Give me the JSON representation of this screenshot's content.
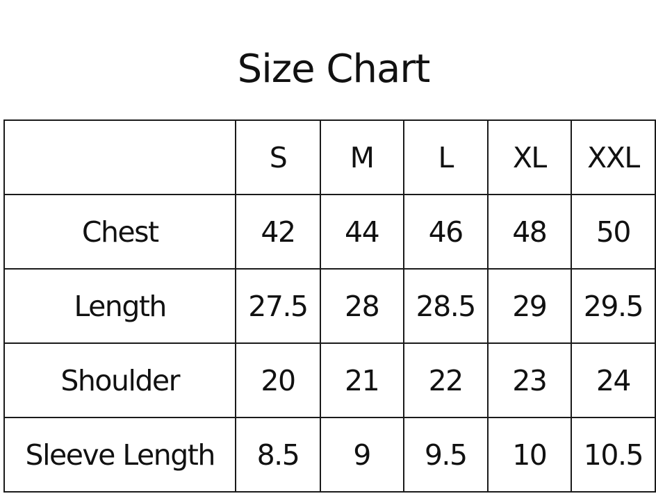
{
  "title": "Size Chart",
  "table": {
    "headers": [
      "",
      "S",
      "M",
      "L",
      "XL",
      "XXL"
    ],
    "rows": [
      {
        "label": "Chest",
        "values": [
          "42",
          "44",
          "46",
          "48",
          "50"
        ]
      },
      {
        "label": "Length",
        "values": [
          "27.5",
          "28",
          "28.5",
          "29",
          "29.5"
        ]
      },
      {
        "label": "Shoulder",
        "values": [
          "20",
          "21",
          "22",
          "23",
          "24"
        ]
      },
      {
        "label": "Sleeve Length",
        "values": [
          "8.5",
          "9",
          "9.5",
          "10",
          "10.5"
        ]
      }
    ]
  }
}
